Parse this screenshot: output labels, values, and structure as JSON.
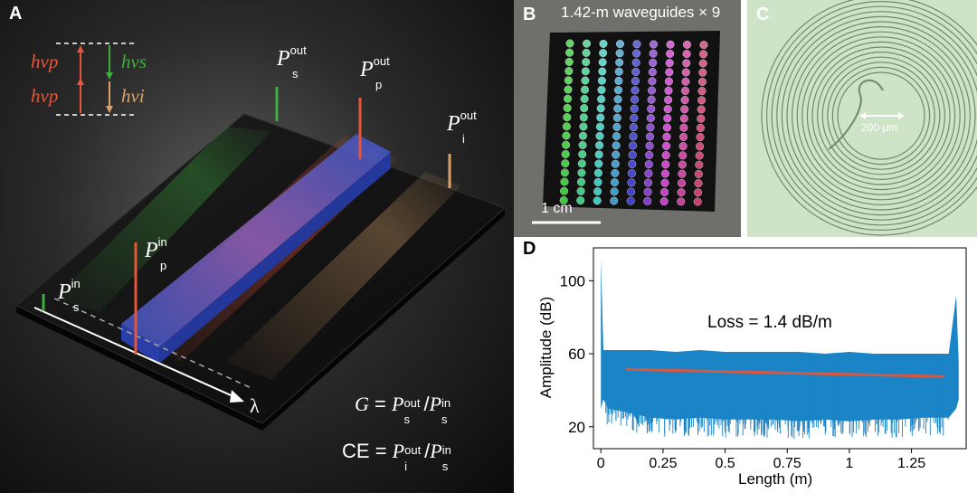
{
  "panelA": {
    "label": "A",
    "energy": {
      "hvp": "hνp",
      "hvs": "hνs",
      "hvi": "hνi",
      "colors": {
        "pump": "#e8563a",
        "signal": "#3fae3f",
        "idler": "#d8a26a"
      }
    },
    "power": {
      "P": "P",
      "sub_s": "s",
      "sub_p": "p",
      "sub_i": "i",
      "sup_out": "out",
      "sup_in": "in"
    },
    "lambda": "λ",
    "eq_gain": "G",
    "eq_ce": "CE",
    "eq_sign": "=",
    "slash": "/"
  },
  "panelB": {
    "label": "B",
    "title": "1.42-m waveguides × 9",
    "scalebar": "1 cm"
  },
  "panelC": {
    "label": "C",
    "scalebar": "200 μm"
  },
  "panelD": {
    "label": "D",
    "annotation": "Loss = 1.4 dB/m"
  },
  "chart_data": {
    "type": "line",
    "title": "",
    "xlabel": "Length (m)",
    "ylabel": "Amplitude (dB)",
    "xlim": [
      -0.03,
      1.47
    ],
    "ylim": [
      8,
      118
    ],
    "xticks": [
      0,
      0.25,
      0.5,
      0.75,
      1,
      1.25
    ],
    "xtick_labels": [
      "0",
      "0.25",
      "0.5",
      "0.75",
      "1",
      "1.25"
    ],
    "yticks": [
      20,
      60,
      100
    ],
    "ytick_labels": [
      "20",
      "60",
      "100"
    ],
    "grid": false,
    "colors": {
      "trace": "#1a84c6",
      "fit": "#d9573f"
    },
    "series": [
      {
        "x": [
          0.0,
          0.01,
          0.03,
          0.1,
          0.2,
          0.3,
          0.4,
          0.5,
          0.6,
          0.7,
          0.8,
          0.9,
          1.0,
          1.1,
          1.2,
          1.3,
          1.4,
          1.43,
          1.44
        ],
        "upper": [
          112,
          62,
          62,
          62,
          62,
          61,
          62,
          61,
          61,
          61,
          61,
          60,
          61,
          60,
          60,
          60,
          60,
          92,
          55
        ],
        "lower": [
          30,
          35,
          30,
          28,
          25,
          24,
          25,
          24,
          24,
          24,
          23,
          24,
          23,
          24,
          24,
          25,
          25,
          30,
          35
        ]
      },
      {
        "x": [
          0.1,
          1.38
        ],
        "values": [
          51.5,
          47.5
        ]
      }
    ]
  }
}
